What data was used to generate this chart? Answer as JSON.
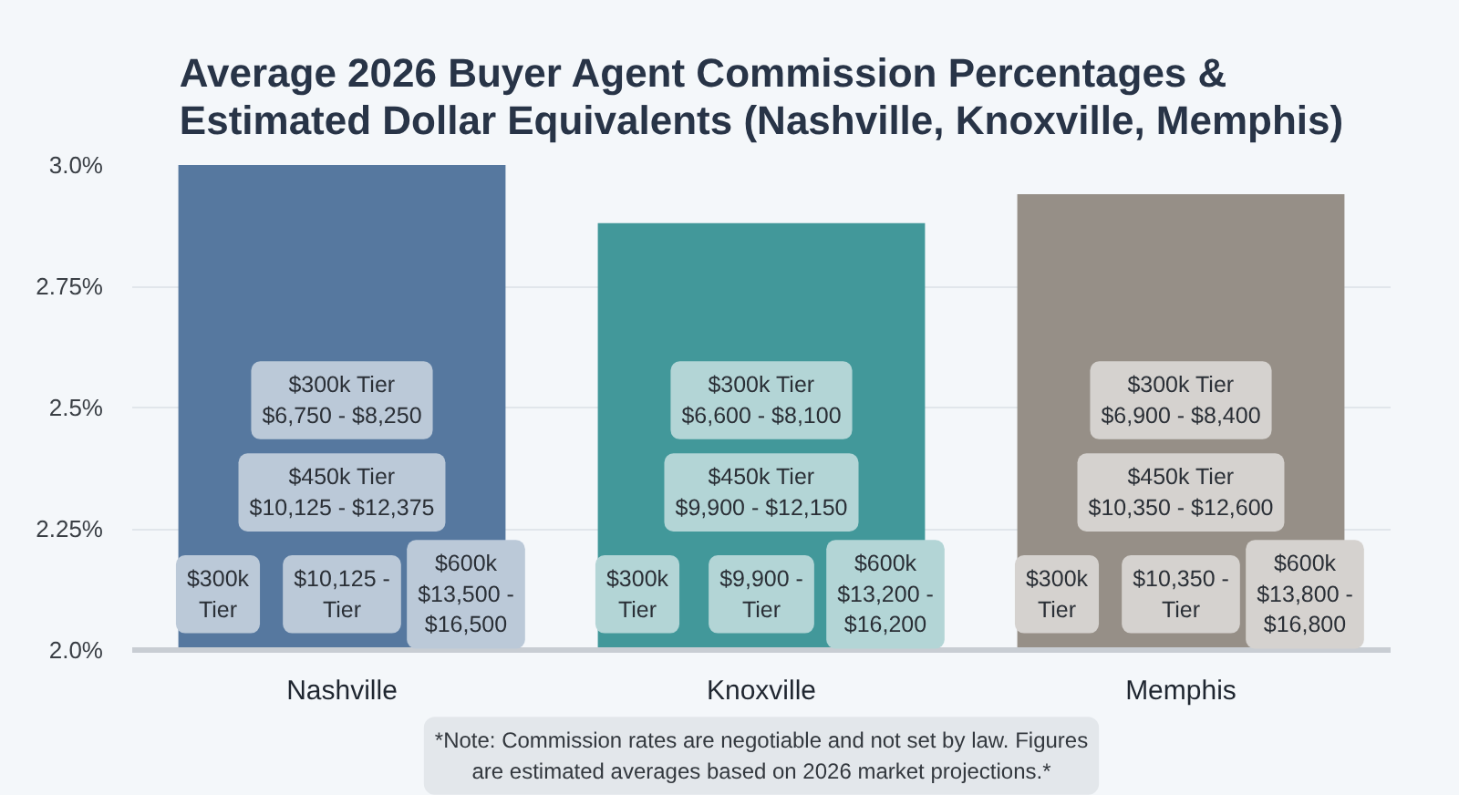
{
  "chart_data": {
    "type": "bar",
    "title": "Average 2026 Buyer Agent Commission Percentages &\nEstimated Dollar Equivalents (Nashville, Knoxville, Memphis)",
    "categories": [
      "Nashville",
      "Knoxville",
      "Memphis"
    ],
    "values": [
      3.0,
      2.88,
      2.94
    ],
    "colors": [
      "#56789f",
      "#42989a",
      "#968f87"
    ],
    "ylim": [
      2.0,
      3.0
    ],
    "yticks": [
      {
        "value": 2.0,
        "label": "2.0%"
      },
      {
        "value": 2.25,
        "label": "2.25%"
      },
      {
        "value": 2.5,
        "label": "2.5%"
      },
      {
        "value": 2.75,
        "label": "2.75%"
      },
      {
        "value": 3.0,
        "label": "3.0%"
      }
    ],
    "grid": "y",
    "annotations": [
      "$300k Tier\n$6,750 - $8,250",
      "$450k Tier\n$10,125 - $12,375",
      "$300k\nTier",
      "$10,125 -\nTier",
      "$600k\n$13,500 -\n$16,500",
      "$300k Tier\n$6,600 - $8,100",
      "$450k Tier\n$9,900 - $12,150",
      "$300k\nTier",
      "$9,900 -\nTier",
      "$600k\n$13,200 -\n$16,200",
      "$300k Tier\n$6,900 - $8,400",
      "$450k Tier\n$10,350 - $12,600",
      "$300k\nTier",
      "$10,350 -\nTier",
      "$600k\n$13,800 -\n$16,800",
      "*Note: Commission rates are negotiable and not set by law. Figures\nare estimated averages based on 2026 market projections.*"
    ]
  }
}
